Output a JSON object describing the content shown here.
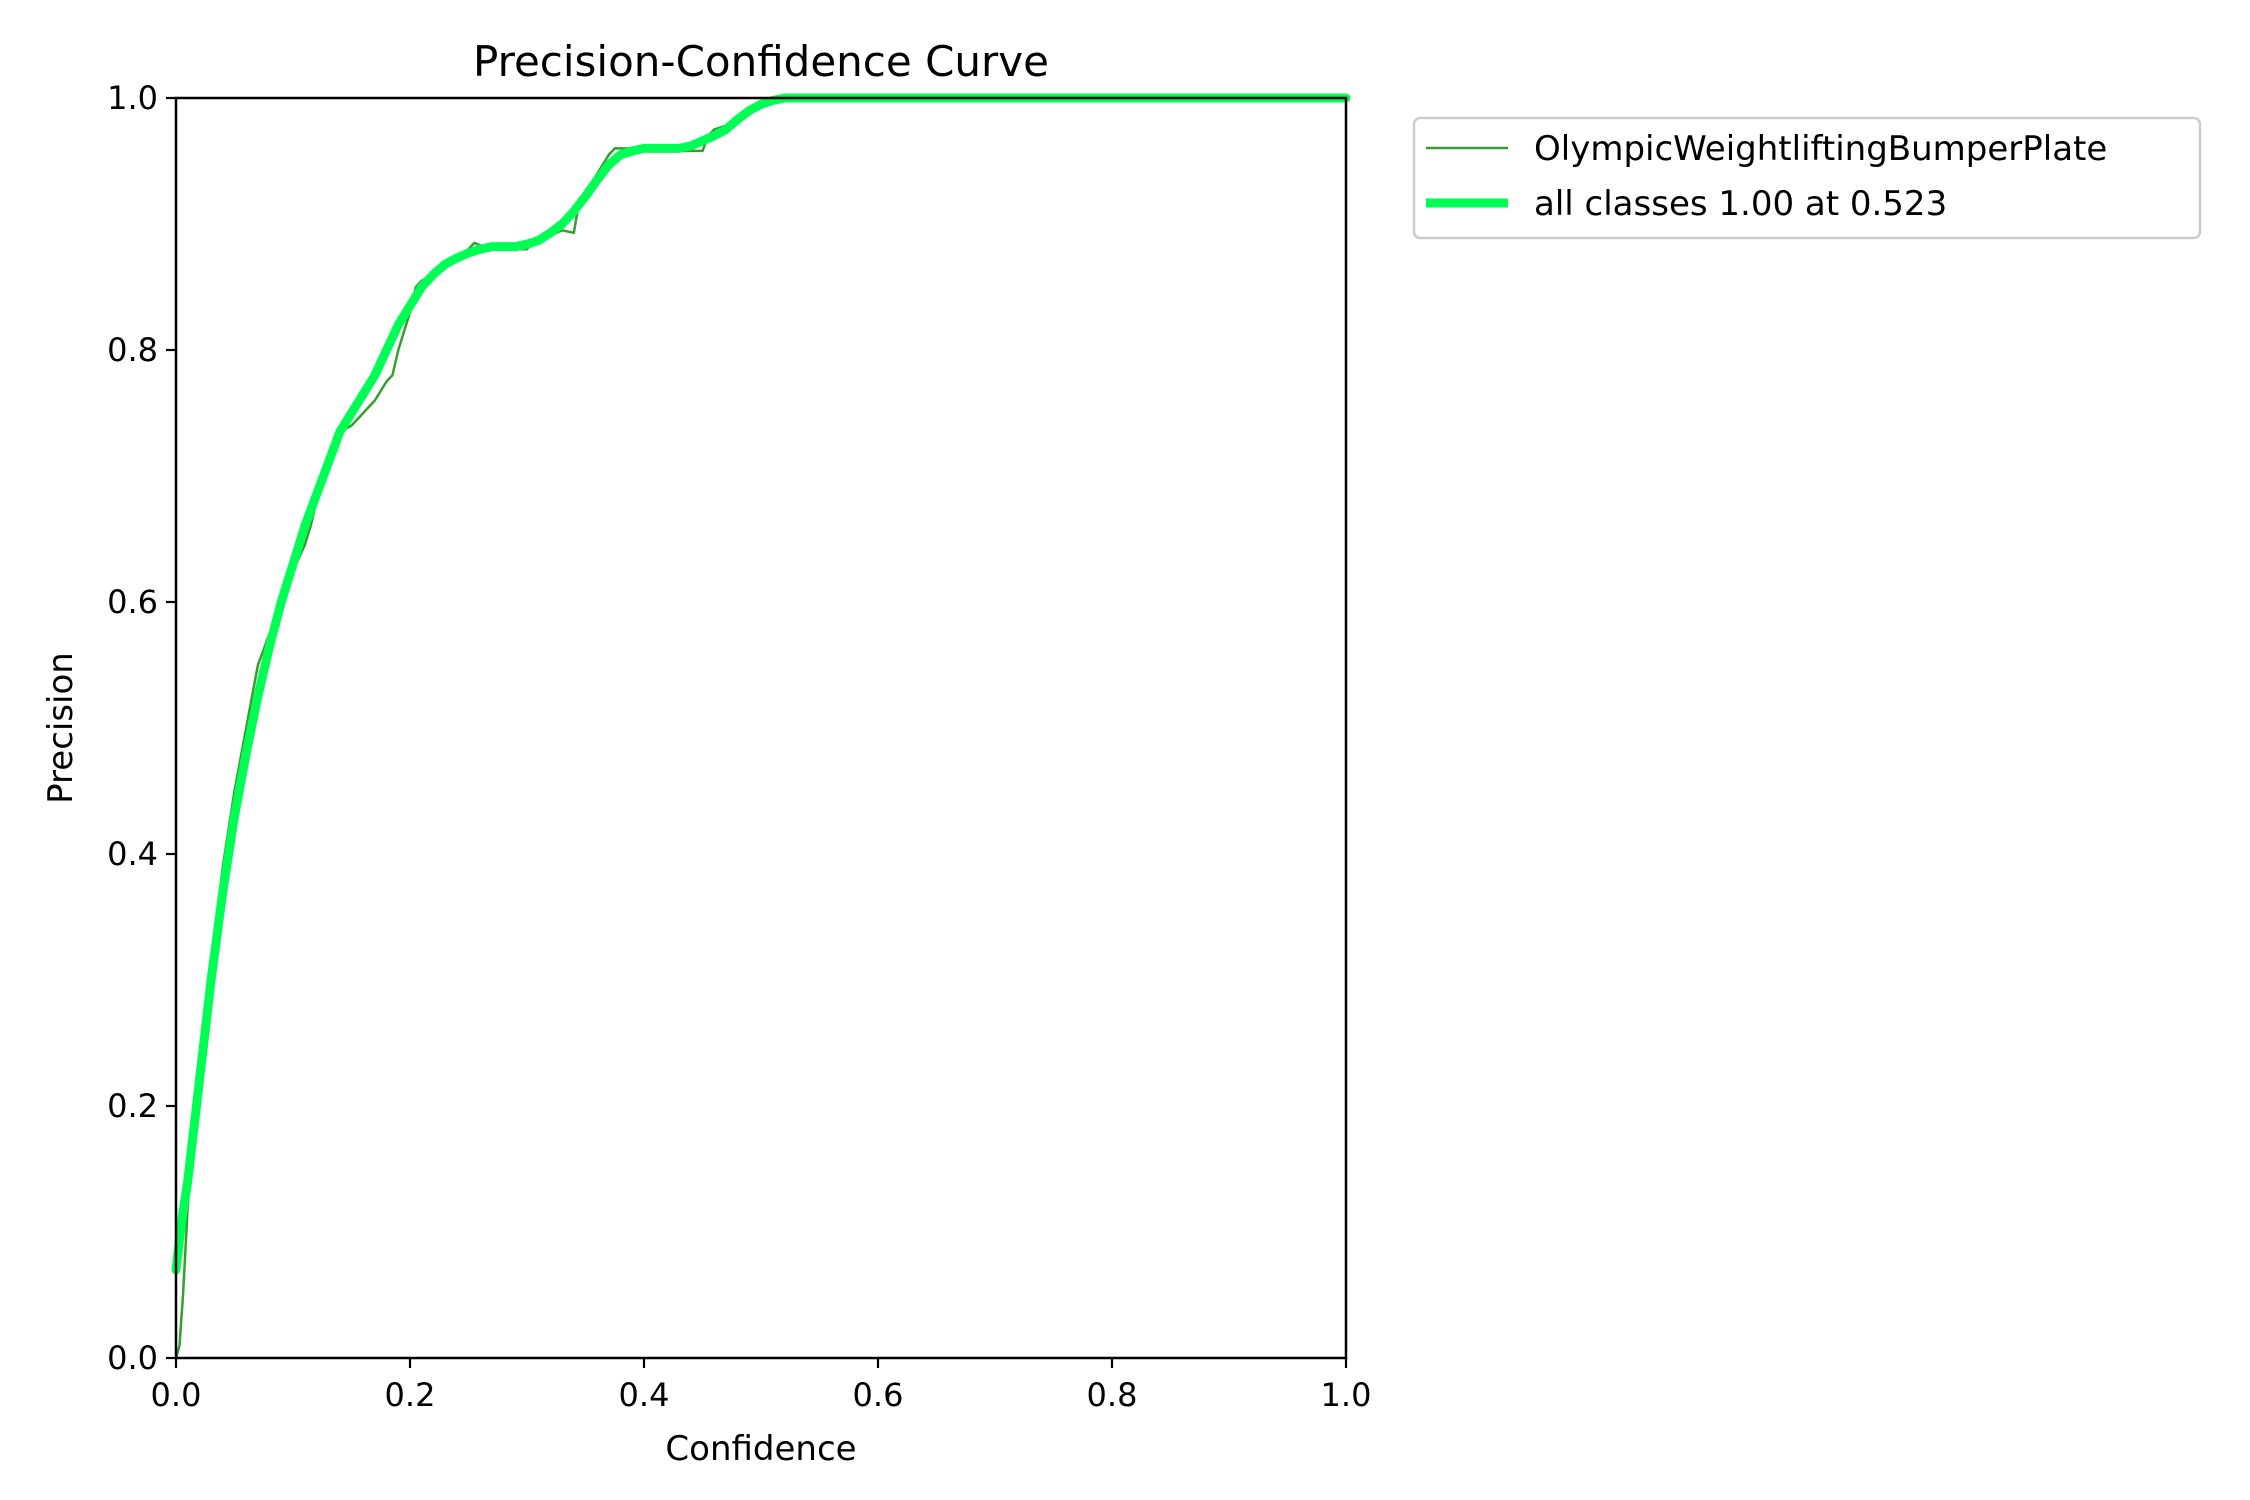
{
  "chart_data": {
    "type": "line",
    "title": "Precision-Confidence Curve",
    "xlabel": "Confidence",
    "ylabel": "Precision",
    "xlim": [
      0,
      1
    ],
    "ylim": [
      0,
      1
    ],
    "xticks": [
      "0.0",
      "0.2",
      "0.4",
      "0.6",
      "0.8",
      "1.0"
    ],
    "yticks": [
      "0.0",
      "0.2",
      "0.4",
      "0.6",
      "0.8",
      "1.0"
    ],
    "grid": false,
    "legend_position": "outside-top-right",
    "series": [
      {
        "name": "OlympicWeightliftingBumperPlate",
        "color": "#33a02c",
        "style": "thin",
        "x": [
          0.0,
          0.003,
          0.006,
          0.01,
          0.015,
          0.02,
          0.025,
          0.03,
          0.035,
          0.04,
          0.05,
          0.06,
          0.07,
          0.08,
          0.085,
          0.09,
          0.1,
          0.11,
          0.115,
          0.12,
          0.13,
          0.135,
          0.14,
          0.15,
          0.16,
          0.17,
          0.18,
          0.185,
          0.19,
          0.2,
          0.205,
          0.21,
          0.22,
          0.23,
          0.24,
          0.25,
          0.255,
          0.26,
          0.27,
          0.28,
          0.29,
          0.3,
          0.305,
          0.31,
          0.32,
          0.325,
          0.33,
          0.34,
          0.345,
          0.35,
          0.36,
          0.37,
          0.375,
          0.38,
          0.39,
          0.4,
          0.41,
          0.42,
          0.43,
          0.44,
          0.45,
          0.455,
          0.46,
          0.47,
          0.48,
          0.49,
          0.5,
          0.51,
          0.52,
          0.55,
          0.6,
          0.7,
          0.8,
          0.9,
          1.0
        ],
        "y": [
          0.0,
          0.01,
          0.05,
          0.12,
          0.17,
          0.22,
          0.27,
          0.31,
          0.35,
          0.39,
          0.45,
          0.5,
          0.55,
          0.575,
          0.585,
          0.6,
          0.625,
          0.645,
          0.66,
          0.68,
          0.71,
          0.725,
          0.735,
          0.74,
          0.75,
          0.76,
          0.775,
          0.78,
          0.8,
          0.83,
          0.85,
          0.855,
          0.86,
          0.87,
          0.875,
          0.88,
          0.885,
          0.883,
          0.88,
          0.88,
          0.88,
          0.88,
          0.885,
          0.89,
          0.89,
          0.893,
          0.895,
          0.893,
          0.92,
          0.925,
          0.94,
          0.955,
          0.96,
          0.96,
          0.96,
          0.96,
          0.96,
          0.958,
          0.958,
          0.958,
          0.958,
          0.97,
          0.975,
          0.978,
          0.98,
          0.99,
          0.995,
          1.0,
          1.0,
          1.0,
          1.0,
          1.0,
          1.0,
          1.0,
          1.0
        ]
      },
      {
        "name": "all classes 1.00 at 0.523",
        "color": "#00ff55",
        "style": "thick",
        "x": [
          0.0,
          0.005,
          0.01,
          0.02,
          0.03,
          0.04,
          0.05,
          0.06,
          0.07,
          0.08,
          0.09,
          0.1,
          0.11,
          0.12,
          0.13,
          0.14,
          0.15,
          0.16,
          0.17,
          0.18,
          0.19,
          0.2,
          0.21,
          0.22,
          0.23,
          0.24,
          0.25,
          0.26,
          0.27,
          0.28,
          0.29,
          0.3,
          0.31,
          0.32,
          0.33,
          0.34,
          0.35,
          0.36,
          0.37,
          0.38,
          0.39,
          0.4,
          0.41,
          0.42,
          0.43,
          0.44,
          0.45,
          0.46,
          0.47,
          0.48,
          0.49,
          0.5,
          0.51,
          0.52,
          0.53,
          0.6,
          0.7,
          0.8,
          0.9,
          1.0
        ],
        "y": [
          0.07,
          0.11,
          0.14,
          0.22,
          0.3,
          0.37,
          0.43,
          0.48,
          0.525,
          0.565,
          0.6,
          0.63,
          0.66,
          0.685,
          0.71,
          0.735,
          0.75,
          0.765,
          0.78,
          0.8,
          0.82,
          0.835,
          0.85,
          0.86,
          0.868,
          0.873,
          0.877,
          0.88,
          0.882,
          0.882,
          0.882,
          0.884,
          0.887,
          0.893,
          0.9,
          0.91,
          0.922,
          0.935,
          0.947,
          0.955,
          0.958,
          0.96,
          0.96,
          0.96,
          0.96,
          0.962,
          0.966,
          0.97,
          0.975,
          0.983,
          0.99,
          0.995,
          0.998,
          1.0,
          1.0,
          1.0,
          1.0,
          1.0,
          1.0,
          1.0
        ]
      }
    ]
  }
}
